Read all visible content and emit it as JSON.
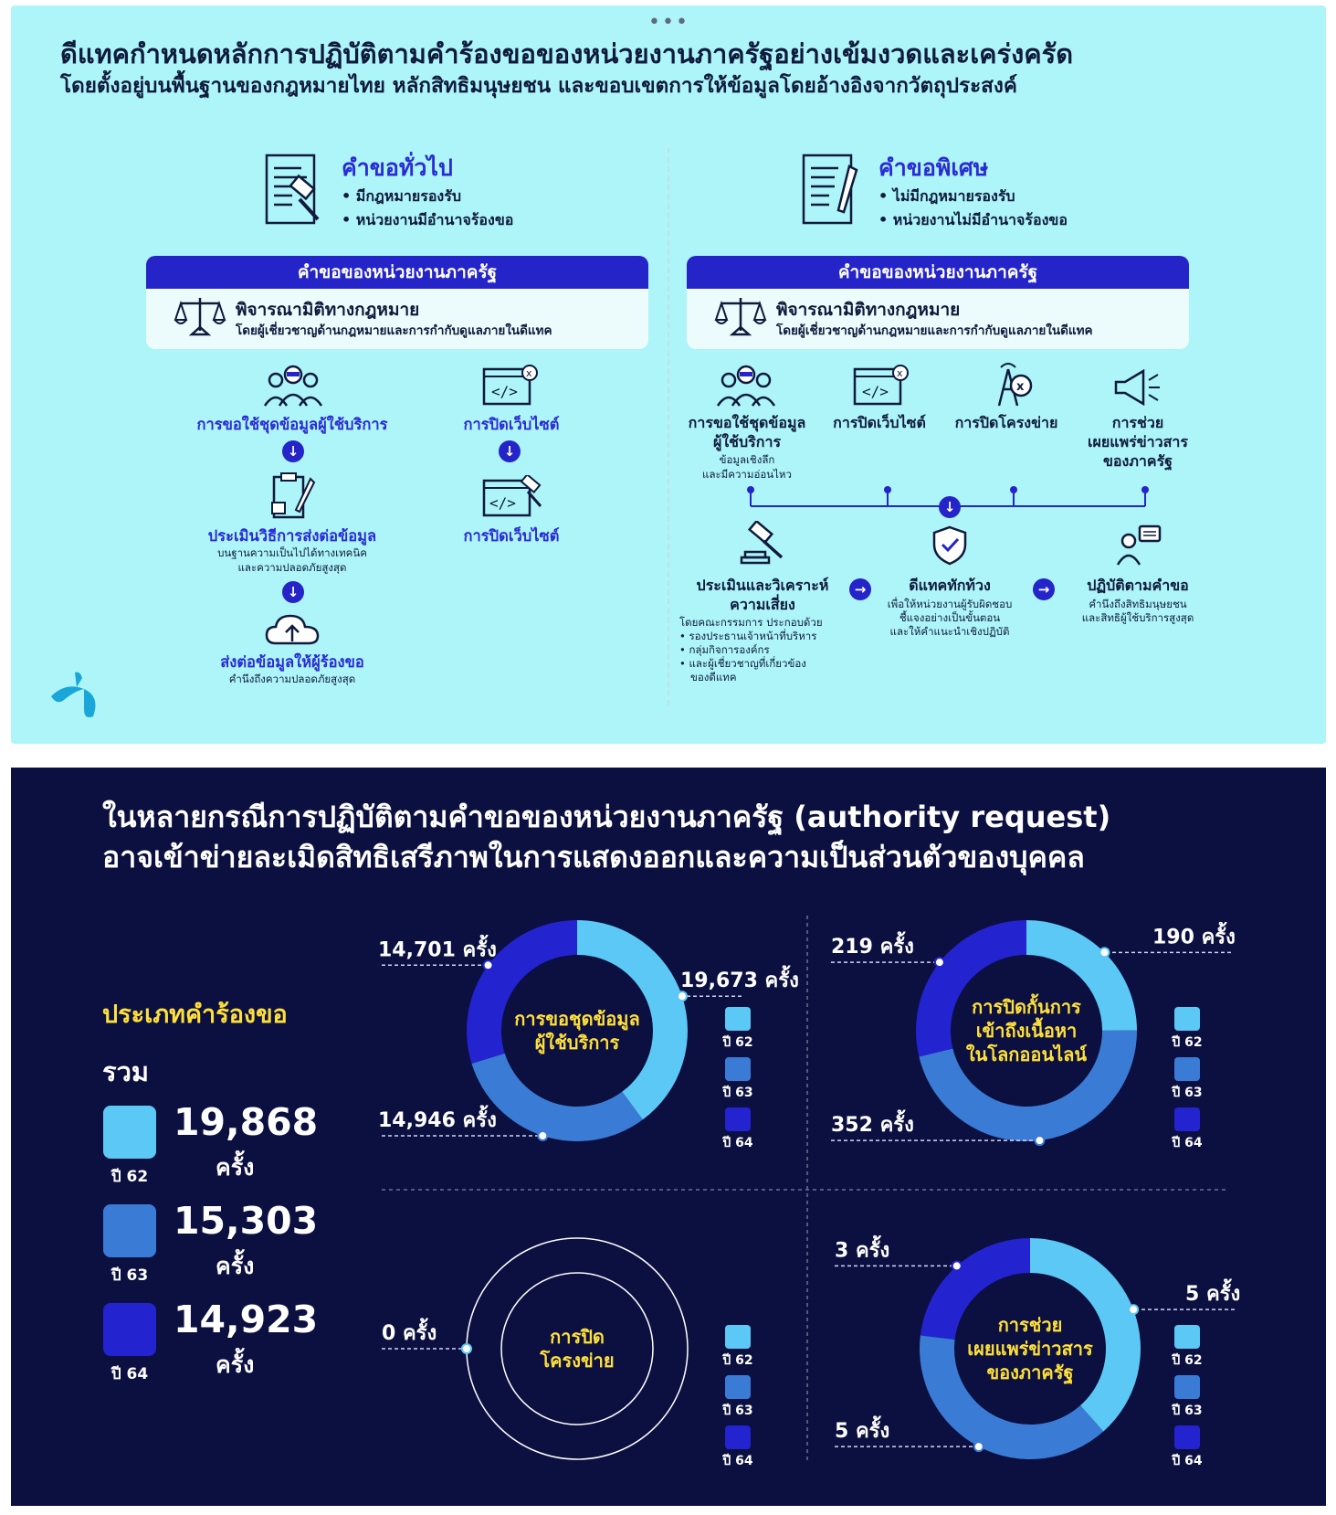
{
  "top": {
    "menu_dots": "•••",
    "headline1": "ดีแทคกำหนดหลักการปฏิบัติตามคำร้องขอของหน่วยงานภาครัฐอย่างเข้มงวดและเคร่งครัด",
    "headline2": "โดยตั้งอยู่บนพื้นฐานของกฎหมายไทย หลักสิทธิมนุษยชน และขอบเขตการให้ข้อมูลโดยอ้างอิงจากวัตถุประสงค์",
    "general": {
      "title": "คำขอทั่วไป",
      "bullet1": "• มีกฎหมายรองรับ",
      "bullet2": "• หน่วยงานมีอำนาจร้องขอ"
    },
    "special": {
      "title": "คำขอพิเศษ",
      "bullet1": "• ไม่มีกฎหมายรองรับ",
      "bullet2": "• หน่วยงานไม่มีอำนาจร้องขอ"
    },
    "box_head": "คำขอของหน่วยงานภาครัฐ",
    "box_t1": "พิจารณามิติทางกฎหมาย",
    "box_t2": "โดยผู้เชี่ยวชาญด้านกฎหมายและการกำกับดูแลภายในดีแทค",
    "left_flow": {
      "a1": "การขอใช้ชุดข้อมูลผู้ใช้บริการ",
      "a2": "ประเมินวิธีการส่งต่อข้อมูล",
      "a2_sub1": "บนฐานความเป็นไปได้ทางเทคนิค",
      "a2_sub2": "และความปลอดภัยสูงสุด",
      "a3": "ส่งต่อข้อมูลให้ผู้ร้องขอ",
      "a3_sub": "คำนึงถึงความปลอดภัยสูงสุด",
      "b1": "การปิดเว็บไซต์",
      "b2": "การปิดเว็บไซต์"
    },
    "right_flow": {
      "c1_l1": "การขอใช้ชุดข้อมูล",
      "c1_l2": "ผู้ใช้บริการ",
      "c1_sub1": "ข้อมูลเชิงลึก",
      "c1_sub2": "และมีความอ่อนไหว",
      "c2": "การปิดเว็บไซต์",
      "c3": "การปิดโครงข่าย",
      "c4_l1": "การช่วย",
      "c4_l2": "เผยแพร่ข่าวสาร",
      "c4_l3": "ของภาครัฐ",
      "d1_l1": "ประเมินและวิเคราะห์",
      "d1_l2": "ความเสี่ยง",
      "d1_s1": "โดยคณะกรรมการ ประกอบด้วย",
      "d1_s2": "• รองประธานเจ้าหน้าที่บริหาร",
      "d1_s3": "• กลุ่มกิจการองค์กร",
      "d1_s4": "• และผู้เชี่ยวชาญที่เกี่ยวข้อง",
      "d1_s5": "ของดีแทค",
      "d2": "ดีแทคทักท้วง",
      "d2_s1": "เพื่อให้หน่วยงานผู้รับผิดชอบ",
      "d2_s2": "ชี้แจงอย่างเป็นขั้นตอน",
      "d2_s3": "และให้คำแนะนำเชิงปฏิบัติ",
      "d3": "ปฏิบัติตามคำขอ",
      "d3_s1": "คำนึงถึงสิทธิมนุษยชน",
      "d3_s2": "และสิทธิผู้ใช้บริการสูงสุด"
    }
  },
  "bottom": {
    "title1": "ในหลายกรณีการปฏิบัติตามคำขอของหน่วยงานภาครัฐ (authority request)",
    "title2": "อาจเข้าข่ายละเมิดสิทธิเสรีภาพในการแสดงออกและความเป็นส่วนตัวของบุคคล",
    "type_label": "ประเภทคำร้องขอ",
    "total_label": "รวม",
    "unit": "ครั้ง",
    "colors": {
      "y62": "#5cc8f5",
      "y63": "#3a7bd5",
      "y64": "#2323d0"
    }
  },
  "chart_data": {
    "type": "pie",
    "legend_labels": [
      "ปี 62",
      "ปี 63",
      "ปี 64"
    ],
    "totals": [
      {
        "year": "ปี 62",
        "value": "19,868"
      },
      {
        "year": "ปี 63",
        "value": "15,303"
      },
      {
        "year": "ปี 64",
        "value": "14,923"
      }
    ],
    "donuts": [
      {
        "name_l1": "การขอชุดข้อมูล",
        "name_l2": "ผู้ใช้บริการ",
        "name_l3": "",
        "values": [
          19673,
          14946,
          14701
        ],
        "labels": [
          "19,673 ครั้ง",
          "14,946 ครั้ง",
          "14,701 ครั้ง"
        ]
      },
      {
        "name_l1": "การปิดกั้นการ",
        "name_l2": "เข้าถึงเนื้อหา",
        "name_l3": "ในโลกออนไลน์",
        "values": [
          190,
          352,
          219
        ],
        "labels": [
          "190 ครั้ง",
          "352 ครั้ง",
          "219 ครั้ง"
        ]
      },
      {
        "name_l1": "การปิด",
        "name_l2": "โครงข่าย",
        "name_l3": "",
        "values": [
          0,
          0,
          0
        ],
        "labels": [
          "0 ครั้ง"
        ]
      },
      {
        "name_l1": "การช่วย",
        "name_l2": "เผยแพร่ข่าวสาร",
        "name_l3": "ของภาครัฐ",
        "values": [
          5,
          5,
          3
        ],
        "labels": [
          "5 ครั้ง",
          "5 ครั้ง",
          "3 ครั้ง"
        ]
      }
    ]
  }
}
